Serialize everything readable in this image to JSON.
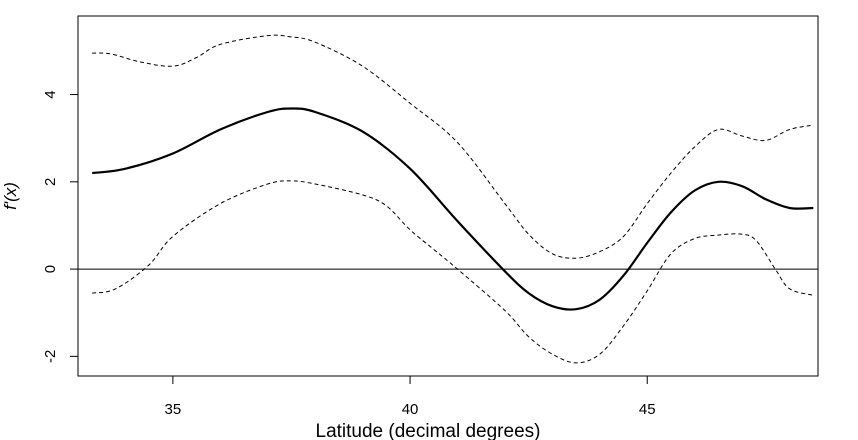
{
  "chart_data": {
    "type": "line",
    "title": "",
    "xlabel": "Latitude (decimal degrees)",
    "ylabel": "f'(x)",
    "xlim": [
      33,
      48.6
    ],
    "ylim": [
      -2.45,
      5.8
    ],
    "x_ticks": [
      35,
      40,
      45
    ],
    "x_tick_labels": [
      "35",
      "40",
      "45"
    ],
    "y_ticks": [
      -2,
      0,
      2,
      4
    ],
    "y_tick_labels": [
      "-2",
      "0",
      "2",
      "4"
    ],
    "grid": false,
    "legend": "none",
    "reference_line": {
      "y": 0,
      "color": "#000000"
    },
    "series": [
      {
        "role": "estimate",
        "style": "solid",
        "color": "#000000",
        "x": [
          33.3,
          34.0,
          35.0,
          36.0,
          37.0,
          37.5,
          38.0,
          39.0,
          40.0,
          41.0,
          42.0,
          42.5,
          43.0,
          43.5,
          44.0,
          44.5,
          45.0,
          45.5,
          46.0,
          46.5,
          47.0,
          47.5,
          48.0,
          48.5
        ],
        "y": [
          2.2,
          2.3,
          2.65,
          3.2,
          3.6,
          3.68,
          3.6,
          3.15,
          2.3,
          1.1,
          -0.05,
          -0.55,
          -0.85,
          -0.92,
          -0.7,
          -0.15,
          0.6,
          1.3,
          1.8,
          2.0,
          1.9,
          1.6,
          1.4,
          1.4
        ]
      },
      {
        "role": "upper-bound",
        "style": "dashed",
        "color": "#000000",
        "x": [
          33.3,
          33.7,
          34.3,
          35.0,
          35.5,
          36.0,
          37.0,
          37.5,
          38.0,
          39.0,
          40.0,
          41.0,
          42.0,
          42.5,
          43.0,
          43.5,
          44.0,
          44.5,
          45.0,
          45.5,
          46.0,
          46.5,
          47.0,
          47.5,
          48.0,
          48.5
        ],
        "y": [
          4.95,
          4.93,
          4.75,
          4.65,
          4.85,
          5.15,
          5.35,
          5.32,
          5.2,
          4.65,
          3.8,
          2.9,
          1.5,
          0.8,
          0.35,
          0.25,
          0.4,
          0.75,
          1.5,
          2.2,
          2.8,
          3.2,
          3.05,
          2.95,
          3.2,
          3.3
        ]
      },
      {
        "role": "lower-bound",
        "style": "dashed",
        "color": "#000000",
        "x": [
          33.3,
          33.8,
          34.5,
          35.0,
          36.0,
          37.0,
          37.5,
          38.0,
          39.0,
          39.5,
          40.0,
          40.5,
          41.0,
          42.0,
          42.5,
          43.0,
          43.5,
          44.0,
          44.5,
          45.0,
          45.5,
          46.0,
          46.5,
          47.0,
          47.3,
          47.7,
          48.0,
          48.5
        ],
        "y": [
          -0.55,
          -0.45,
          0.1,
          0.75,
          1.5,
          1.95,
          2.02,
          1.95,
          1.7,
          1.45,
          0.9,
          0.45,
          0.0,
          -0.95,
          -1.55,
          -1.95,
          -2.15,
          -1.95,
          -1.3,
          -0.5,
          0.35,
          0.7,
          0.78,
          0.8,
          0.65,
          0.0,
          -0.45,
          -0.6
        ]
      }
    ]
  }
}
